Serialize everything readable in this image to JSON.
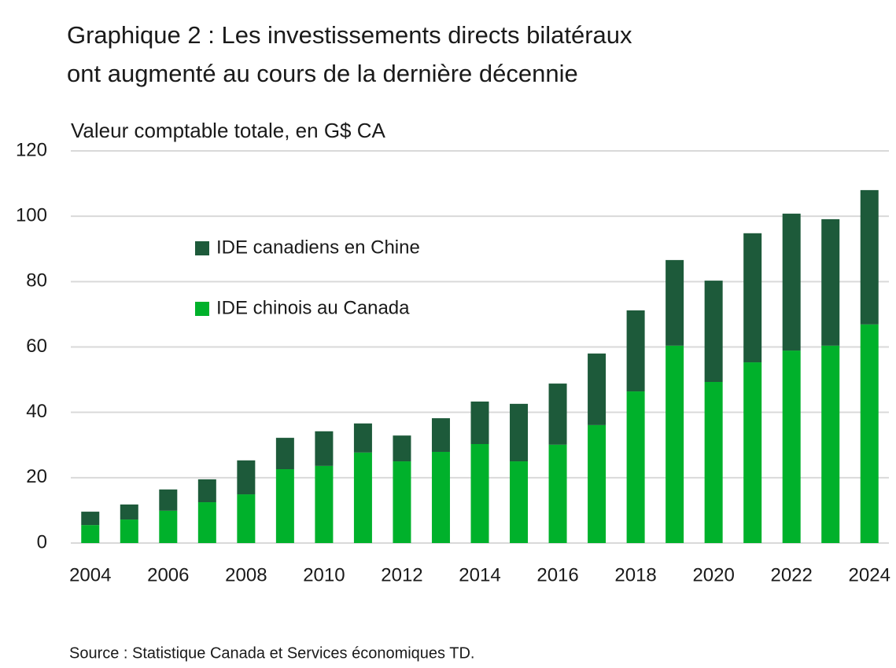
{
  "chart_data": {
    "type": "stacked-bar",
    "title": "Graphique 2 : Les investissements directs bilatéraux",
    "title_line2": "ont augmenté au cours de la dernière décennie",
    "subtitle": "Valeur comptable totale, en G$ CA",
    "source": "Source : Statistique Canada et Services économiques TD.",
    "categories": [
      "2004",
      null,
      "2006",
      null,
      "2008",
      null,
      "2010",
      null,
      "2012",
      null,
      "2014",
      null,
      "2016",
      null,
      "2018",
      null,
      "2020",
      null,
      "2022",
      null,
      "2024"
    ],
    "series": [
      {
        "name": "IDE canadiens en Chine",
        "color": "#1d5a3a",
        "values": [
          4.1,
          4.6,
          6.5,
          7.0,
          10.4,
          9.6,
          10.6,
          8.9,
          7.9,
          10.3,
          13.0,
          17.6,
          18.7,
          21.9,
          24.8,
          26.2,
          31.0,
          39.5,
          41.9,
          38.7,
          41.1
        ]
      },
      {
        "name": "IDE chinois au Canada",
        "color": "#00b12b",
        "values": [
          5.5,
          7.2,
          9.9,
          12.5,
          14.9,
          22.6,
          23.6,
          27.7,
          25.0,
          27.9,
          30.3,
          25.0,
          30.1,
          36.1,
          46.4,
          60.4,
          49.3,
          55.3,
          58.9,
          60.4,
          66.9
        ]
      }
    ],
    "ylim": [
      0,
      120
    ],
    "yticks": [
      0,
      20,
      40,
      60,
      80,
      100,
      120
    ],
    "grid": true,
    "legend": "top-left"
  }
}
